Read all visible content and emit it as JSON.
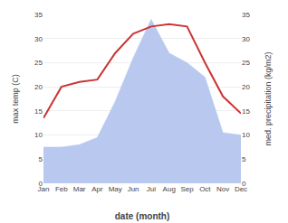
{
  "chart_data": {
    "type": "line",
    "xlabel": "date (month)",
    "ylabel": "max temp (C)",
    "y2label": "med. precipitation (kg/m2)",
    "categories": [
      "Jan",
      "Feb",
      "Mar",
      "Apr",
      "May",
      "Jun",
      "Jul",
      "Aug",
      "Sep",
      "Oct",
      "Nov",
      "Dec"
    ],
    "series": [
      {
        "type": "line",
        "color": "#cc3333",
        "values": [
          13.5,
          20.0,
          21.0,
          21.5,
          27.0,
          31.0,
          32.5,
          33.0,
          32.5,
          25.0,
          18.0,
          14.5
        ]
      },
      {
        "type": "area",
        "axis": "y2",
        "color": "#b8c8ee",
        "values": [
          7.5,
          7.5,
          8.0,
          9.5,
          17.0,
          26.0,
          34.0,
          27.0,
          25.0,
          22.0,
          10.5,
          10.0
        ]
      }
    ],
    "ylim": [
      0,
      35
    ],
    "yticks": [
      0,
      5,
      10,
      15,
      20,
      25,
      30,
      35
    ],
    "y2lim": [
      0,
      35
    ],
    "y2ticks": [
      0,
      5,
      10,
      15,
      20,
      25,
      30,
      35
    ],
    "grid": true
  }
}
